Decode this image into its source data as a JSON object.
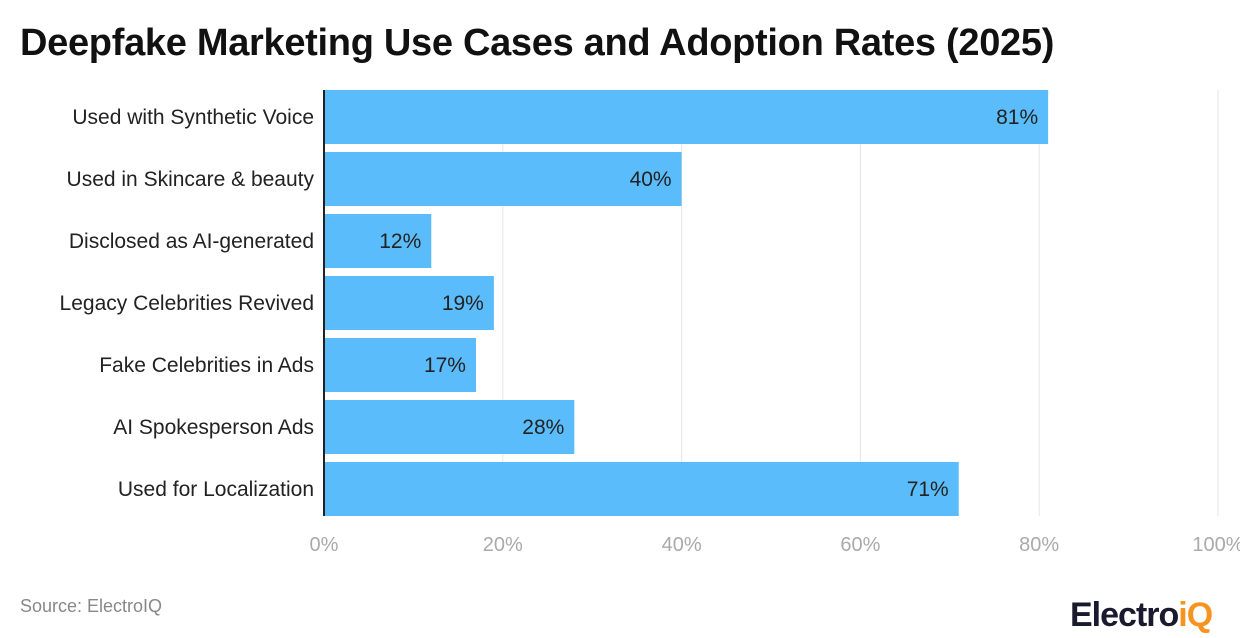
{
  "chart_data": {
    "type": "bar",
    "orientation": "horizontal",
    "title": "Deepfake Marketing Use Cases and Adoption Rates (2025)",
    "categories": [
      "Used with Synthetic Voice",
      "Used in Skincare & beauty",
      "Disclosed as AI-generated",
      "Legacy Celebrities Revived",
      "Fake Celebrities in Ads",
      "AI Spokesperson Ads",
      "Used for Localization"
    ],
    "values": [
      81,
      40,
      12,
      19,
      17,
      28,
      71
    ],
    "value_suffix": "%",
    "xlim": [
      0,
      100
    ],
    "xticks": [
      0,
      20,
      40,
      60,
      80,
      100
    ],
    "xtick_labels": [
      "0%",
      "20%",
      "40%",
      "60%",
      "80%",
      "100%"
    ],
    "grid": true,
    "bar_color": "#5bbcfb"
  },
  "footer": {
    "source": "Source: ElectroIQ",
    "logo_main": "Electro",
    "logo_accent": "iQ",
    "logo_accent_color": "#f7931e"
  }
}
